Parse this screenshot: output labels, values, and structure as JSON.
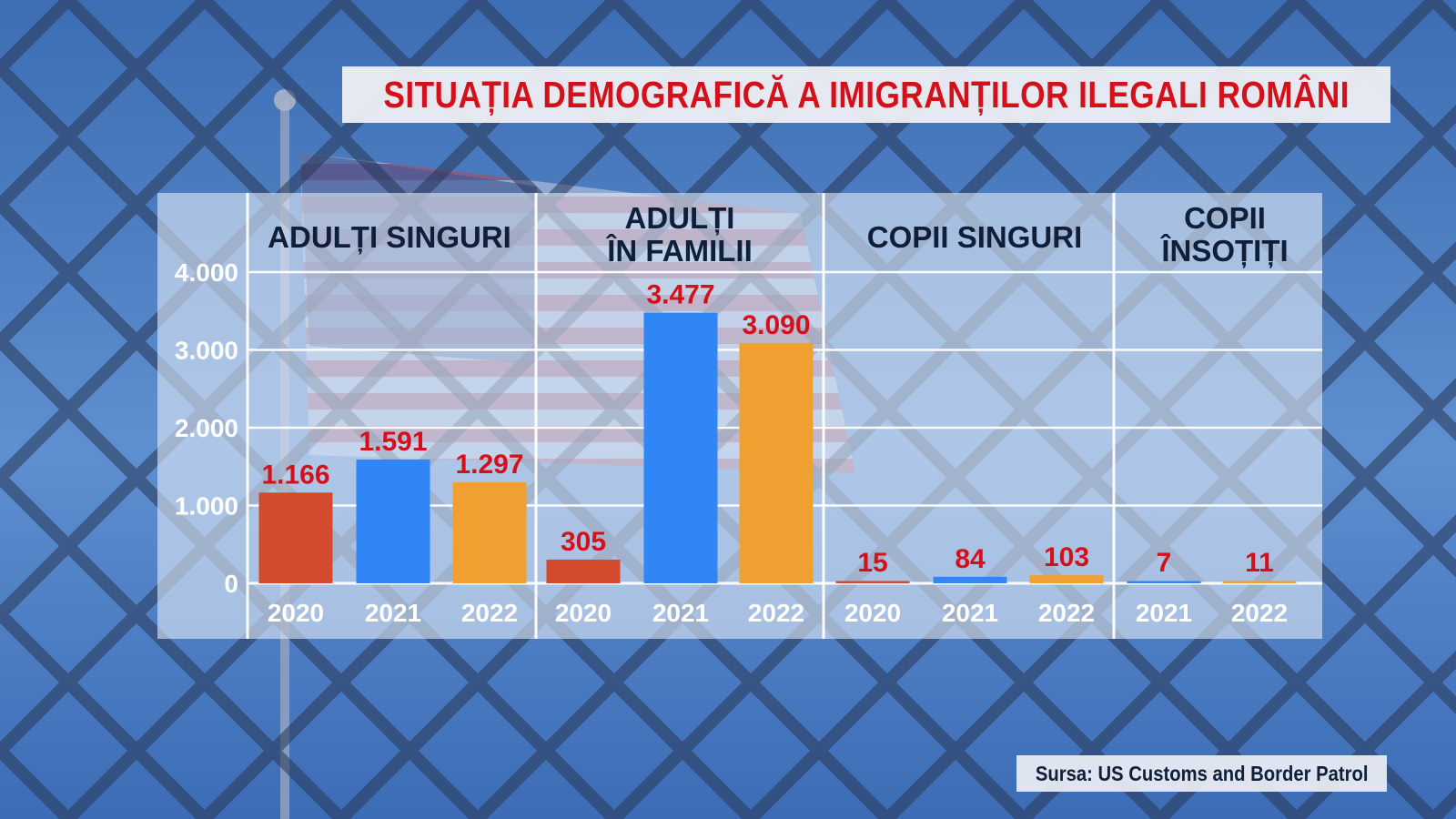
{
  "title": "SITUAȚIA DEMOGRAFICĂ A IMIGRANȚILOR ILEGALI ROMÂNI",
  "source": "Sursa: US Customs and Border Patrol",
  "colors": {
    "y2020": "#d44a2c",
    "y2021": "#2f86f4",
    "y2022": "#f0a030",
    "value_label": "#d4111b",
    "header_text": "#0f1f3a"
  },
  "chart_data": {
    "type": "bar",
    "y_ticks": [
      "4.000",
      "3.000",
      "2.000",
      "1.000",
      "0"
    ],
    "y_tick_values": [
      4000,
      3000,
      2000,
      1000,
      0
    ],
    "ylim": [
      0,
      4000
    ],
    "grid": true,
    "groups": [
      {
        "name_lines": [
          "ADULȚI SINGURI"
        ],
        "bars": [
          {
            "year": "2020",
            "value": 1166,
            "label": "1.166"
          },
          {
            "year": "2021",
            "value": 1591,
            "label": "1.591"
          },
          {
            "year": "2022",
            "value": 1297,
            "label": "1.297"
          }
        ]
      },
      {
        "name_lines": [
          "ADULȚI",
          "ÎN FAMILII"
        ],
        "bars": [
          {
            "year": "2020",
            "value": 305,
            "label": "305"
          },
          {
            "year": "2021",
            "value": 3477,
            "label": "3.477"
          },
          {
            "year": "2022",
            "value": 3090,
            "label": "3.090"
          }
        ]
      },
      {
        "name_lines": [
          "COPII SINGURI"
        ],
        "bars": [
          {
            "year": "2020",
            "value": 15,
            "label": "15"
          },
          {
            "year": "2021",
            "value": 84,
            "label": "84"
          },
          {
            "year": "2022",
            "value": 103,
            "label": "103"
          }
        ]
      },
      {
        "name_lines": [
          "COPII",
          "ÎNSOȚIȚI"
        ],
        "bars": [
          {
            "year": "2021",
            "value": 7,
            "label": "7"
          },
          {
            "year": "2022",
            "value": 11,
            "label": "11"
          }
        ]
      }
    ]
  }
}
